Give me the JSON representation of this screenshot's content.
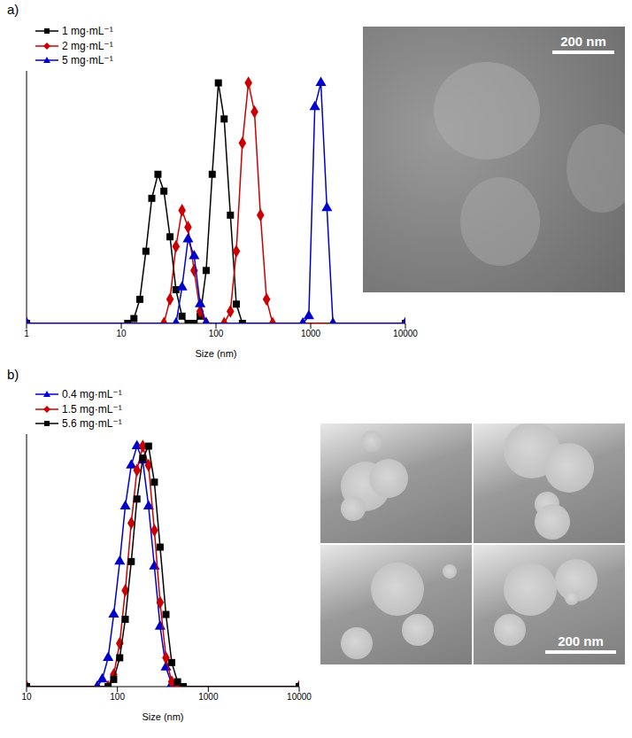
{
  "chart_data": [
    {
      "type": "line",
      "panel_label": "a)",
      "x_label": "Size (nm)",
      "log": "x",
      "grid": false,
      "legend": "upper left",
      "tick_labels": "x",
      "xlim": [
        1,
        10000
      ],
      "xticks": [
        1,
        10,
        100,
        1000,
        10000
      ],
      "ylim": [
        0,
        105
      ],
      "annotations": [
        "200 nm"
      ],
      "series": [
        {
          "name": "1 mg·mL⁻¹",
          "color": "#000000",
          "marker": "square",
          "x": [
            1,
            11.7,
            13.6,
            15.7,
            18.2,
            21,
            24.4,
            28.2,
            32.7,
            37.8,
            43.8,
            50.7,
            58.8,
            68.1,
            78.8,
            91.3,
            106,
            122,
            142,
            164,
            190,
            10000
          ],
          "values": [
            0,
            0,
            2,
            10,
            30,
            52,
            62,
            55,
            36,
            14,
            3,
            0,
            0,
            3,
            22,
            62,
            100,
            85,
            45,
            8,
            0,
            0
          ]
        },
        {
          "name": "2 mg·mL⁻¹",
          "color": "#cc0000",
          "marker": "diamond",
          "x": [
            1,
            28.2,
            32.7,
            37.8,
            43.8,
            50.7,
            58.8,
            68.1,
            78.8,
            122,
            142,
            164,
            190,
            220,
            255,
            295,
            342,
            396,
            10000
          ],
          "values": [
            0,
            0,
            10,
            32,
            47,
            40,
            22,
            5,
            0,
            0,
            5,
            30,
            75,
            100,
            88,
            45,
            10,
            0,
            0
          ]
        },
        {
          "name": "5 mg·mL⁻¹",
          "color": "#0000cc",
          "marker": "triangle",
          "x": [
            1,
            37.8,
            43.8,
            50.7,
            58.8,
            68.1,
            78.8,
            825,
            955,
            1106,
            1281,
            1484,
            1718,
            10000
          ],
          "values": [
            0,
            0,
            15,
            35,
            28,
            8,
            0,
            0,
            3,
            90,
            100,
            48,
            0,
            0
          ]
        }
      ]
    },
    {
      "type": "line",
      "panel_label": "b)",
      "x_label": "Size (nm)",
      "log": "x",
      "grid": false,
      "legend": "upper left",
      "tick_labels": "x",
      "xlim": [
        10,
        10000
      ],
      "xticks": [
        10,
        100,
        1000,
        10000
      ],
      "ylim": [
        0,
        105
      ],
      "annotations": [
        "200 nm"
      ],
      "series": [
        {
          "name": "0.4 mg·mL⁻¹",
          "color": "#0000cc",
          "marker": "triangle",
          "x": [
            10,
            60,
            68,
            79,
            91,
            106,
            122,
            142,
            164,
            190,
            220,
            255,
            295,
            342,
            396,
            459,
            10000
          ],
          "values": [
            0,
            0,
            3,
            12,
            30,
            52,
            75,
            92,
            100,
            94,
            75,
            50,
            25,
            8,
            1,
            0,
            0
          ]
        },
        {
          "name": "1.5 mg·mL⁻¹",
          "color": "#cc0000",
          "marker": "diamond",
          "x": [
            10,
            79,
            91,
            106,
            122,
            142,
            164,
            190,
            220,
            255,
            295,
            342,
            396,
            459,
            10000
          ],
          "values": [
            0,
            0,
            5,
            18,
            40,
            68,
            90,
            100,
            92,
            65,
            35,
            12,
            2,
            0,
            0
          ]
        },
        {
          "name": "5.6 mg·mL⁻¹",
          "color": "#000000",
          "marker": "square",
          "x": [
            10,
            79,
            91,
            106,
            122,
            142,
            164,
            190,
            220,
            255,
            295,
            342,
            396,
            459,
            531,
            10000
          ],
          "values": [
            0,
            0,
            3,
            12,
            28,
            52,
            78,
            95,
            100,
            85,
            58,
            30,
            10,
            2,
            0,
            0
          ]
        }
      ]
    }
  ]
}
